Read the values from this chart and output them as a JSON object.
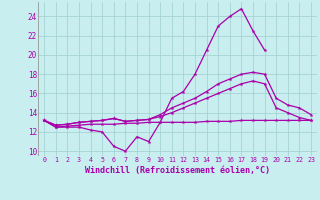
{
  "xlabel": "Windchill (Refroidissement éolien,°C)",
  "background_color": "#c8eef0",
  "grid_color": "#a0cece",
  "line_color": "#aa00aa",
  "ylim": [
    9.5,
    25.5
  ],
  "xlim": [
    -0.5,
    23.5
  ],
  "yticks": [
    10,
    12,
    14,
    16,
    18,
    20,
    22,
    24
  ],
  "xticks": [
    0,
    1,
    2,
    3,
    4,
    5,
    6,
    7,
    8,
    9,
    10,
    11,
    12,
    13,
    14,
    15,
    16,
    17,
    18,
    19,
    20,
    21,
    22,
    23
  ],
  "series1_x": [
    0,
    1,
    2,
    3,
    4,
    5,
    6,
    7,
    8,
    9,
    10,
    11,
    12,
    13,
    14,
    15,
    16,
    17,
    18,
    19
  ],
  "series1_y": [
    13.2,
    12.5,
    12.5,
    12.5,
    12.2,
    12.0,
    10.5,
    10.0,
    11.5,
    11.0,
    13.0,
    15.5,
    16.2,
    18.0,
    20.5,
    23.0,
    24.0,
    24.8,
    22.5,
    20.5
  ],
  "series2_x": [
    0,
    1,
    2,
    3,
    4,
    5,
    6,
    7,
    8,
    9,
    10,
    11,
    12,
    13,
    14,
    15,
    16,
    17,
    18,
    19,
    20,
    21,
    22,
    23
  ],
  "series2_y": [
    13.2,
    12.7,
    12.8,
    13.0,
    13.1,
    13.2,
    13.4,
    13.1,
    13.2,
    13.3,
    13.8,
    14.5,
    15.0,
    15.5,
    16.2,
    17.0,
    17.5,
    18.0,
    18.2,
    18.0,
    15.5,
    14.8,
    14.5,
    13.8
  ],
  "series3_x": [
    0,
    1,
    2,
    3,
    4,
    5,
    6,
    7,
    8,
    9,
    10,
    11,
    12,
    13,
    14,
    15,
    16,
    17,
    18,
    19,
    20,
    21,
    22,
    23
  ],
  "series3_y": [
    13.2,
    12.7,
    12.8,
    13.0,
    13.1,
    13.2,
    13.4,
    13.1,
    13.2,
    13.3,
    13.6,
    14.0,
    14.5,
    15.0,
    15.5,
    16.0,
    16.5,
    17.0,
    17.3,
    17.0,
    14.5,
    14.0,
    13.5,
    13.2
  ],
  "series4_x": [
    0,
    1,
    2,
    3,
    4,
    5,
    6,
    7,
    8,
    9,
    10,
    11,
    12,
    13,
    14,
    15,
    16,
    17,
    18,
    19,
    20,
    21,
    22,
    23
  ],
  "series4_y": [
    13.2,
    12.5,
    12.6,
    12.7,
    12.8,
    12.8,
    12.8,
    12.9,
    12.9,
    13.0,
    13.0,
    13.0,
    13.0,
    13.0,
    13.1,
    13.1,
    13.1,
    13.2,
    13.2,
    13.2,
    13.2,
    13.2,
    13.2,
    13.2
  ]
}
